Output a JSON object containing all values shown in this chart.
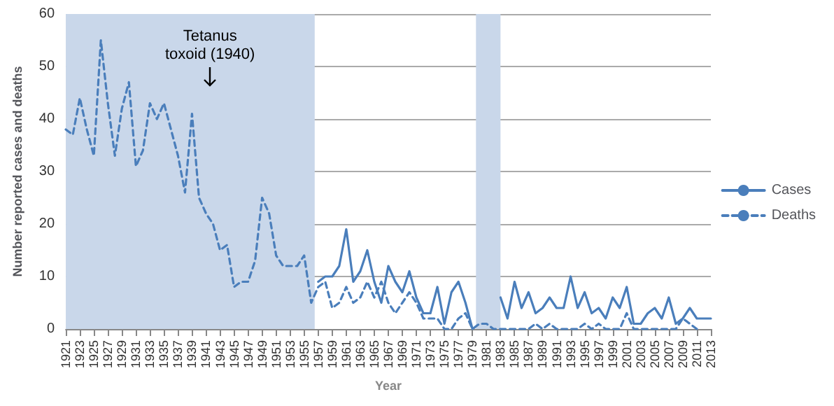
{
  "chart_data": {
    "type": "line",
    "xlabel": "Year",
    "ylabel": "Number reported cases and deaths",
    "x": [
      1921,
      1922,
      1923,
      1924,
      1925,
      1926,
      1927,
      1928,
      1929,
      1930,
      1931,
      1932,
      1933,
      1934,
      1935,
      1936,
      1937,
      1938,
      1939,
      1940,
      1941,
      1942,
      1943,
      1944,
      1945,
      1946,
      1947,
      1948,
      1949,
      1950,
      1951,
      1952,
      1953,
      1954,
      1955,
      1956,
      1957,
      1958,
      1959,
      1960,
      1961,
      1962,
      1963,
      1964,
      1965,
      1966,
      1967,
      1968,
      1969,
      1970,
      1971,
      1972,
      1973,
      1974,
      1975,
      1976,
      1977,
      1978,
      1979,
      1980,
      1981,
      1982,
      1983,
      1984,
      1985,
      1986,
      1987,
      1988,
      1989,
      1990,
      1991,
      1992,
      1993,
      1994,
      1995,
      1996,
      1997,
      1998,
      1999,
      2000,
      2001,
      2002,
      2003,
      2004,
      2005,
      2006,
      2007,
      2008,
      2009,
      2010,
      2011,
      2012,
      2013
    ],
    "series": [
      {
        "name": "Cases",
        "color": "#4a7ebb",
        "line_style": "solid",
        "values": [
          null,
          null,
          null,
          null,
          null,
          null,
          null,
          null,
          null,
          null,
          null,
          null,
          null,
          null,
          null,
          null,
          null,
          null,
          null,
          null,
          null,
          null,
          null,
          null,
          null,
          null,
          null,
          null,
          null,
          null,
          null,
          null,
          null,
          null,
          null,
          null,
          9,
          10,
          10,
          12,
          19,
          9,
          11,
          15,
          9,
          5,
          12,
          9,
          7,
          11,
          6,
          3,
          3,
          8,
          1,
          7,
          9,
          5,
          0,
          null,
          null,
          null,
          6,
          2,
          9,
          4,
          7,
          3,
          4,
          6,
          4,
          4,
          10,
          4,
          7,
          3,
          4,
          2,
          6,
          4,
          8,
          1,
          1,
          3,
          4,
          2,
          6,
          1,
          2,
          4,
          2,
          2,
          2
        ]
      },
      {
        "name": "Deaths",
        "color": "#4a7ebb",
        "line_style": "dashed",
        "values": [
          38,
          37,
          44,
          38,
          33,
          55,
          43,
          33,
          42,
          47,
          31,
          34,
          43,
          40,
          43,
          38,
          33,
          26,
          41,
          25,
          22,
          20,
          15,
          16,
          8,
          9,
          9,
          13,
          25,
          22,
          14,
          12,
          12,
          12,
          14,
          5,
          8,
          9,
          4,
          5,
          8,
          5,
          6,
          9,
          6,
          9,
          5,
          3,
          5,
          7,
          5,
          2,
          2,
          2,
          0,
          0,
          2,
          3,
          0,
          1,
          1,
          0,
          0,
          0,
          0,
          0,
          0,
          1,
          0,
          1,
          0,
          0,
          0,
          0,
          1,
          0,
          1,
          0,
          0,
          0,
          3,
          0,
          0,
          0,
          0,
          0,
          0,
          0,
          2,
          1,
          0,
          null,
          null
        ]
      }
    ],
    "xlim": [
      1921,
      2013
    ],
    "xticks": [
      1921,
      1923,
      1925,
      1927,
      1929,
      1931,
      1933,
      1935,
      1937,
      1939,
      1941,
      1943,
      1945,
      1947,
      1949,
      1951,
      1953,
      1955,
      1957,
      1959,
      1961,
      1963,
      1965,
      1967,
      1969,
      1971,
      1973,
      1975,
      1977,
      1979,
      1981,
      1983,
      1985,
      1987,
      1989,
      1991,
      1993,
      1995,
      1997,
      1999,
      2001,
      2003,
      2005,
      2007,
      2009,
      2011,
      2013
    ],
    "ylim": [
      0,
      60
    ],
    "yticks": [
      0,
      10,
      20,
      30,
      40,
      50,
      60
    ],
    "bands": [
      {
        "axis": "x",
        "from": 1921,
        "to": 1956.5,
        "color": "#c9d7ea"
      },
      {
        "axis": "x",
        "from": 1979.5,
        "to": 1983,
        "color": "#c9d7ea"
      }
    ],
    "annotations": [
      "Tetanus\ntoxoid (1940)"
    ],
    "grid": "y",
    "legend": "right",
    "marker": "none"
  }
}
